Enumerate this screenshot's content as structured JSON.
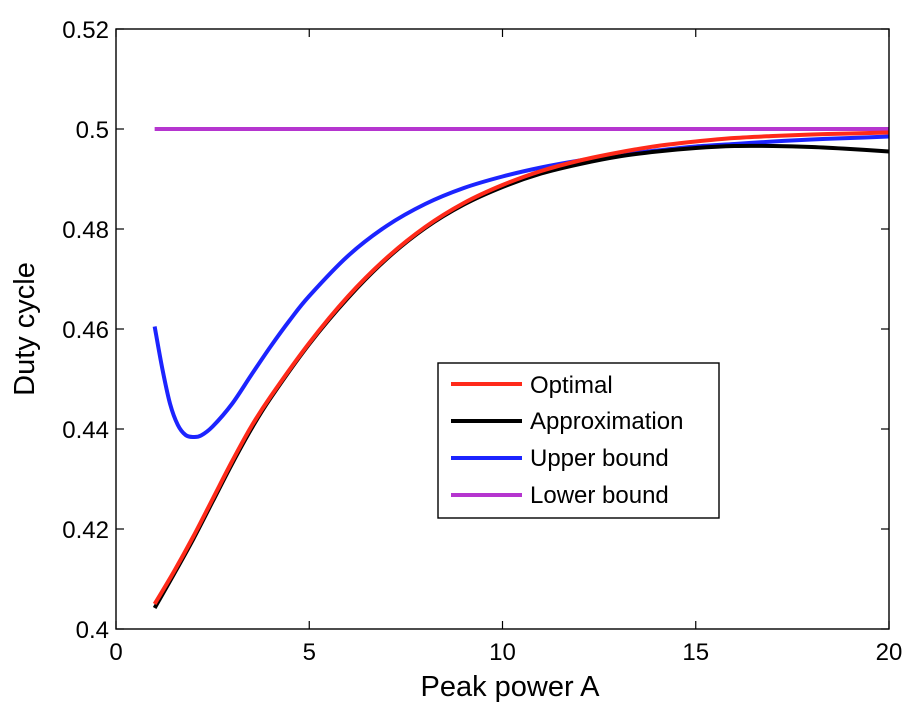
{
  "chart_data": {
    "type": "line",
    "xlabel": "Peak power A",
    "ylabel": "Duty cycle",
    "xlim": [
      0,
      20
    ],
    "ylim": [
      0.4,
      0.52
    ],
    "xticks": [
      0,
      5,
      10,
      15,
      20
    ],
    "yticks": [
      0.4,
      0.42,
      0.44,
      0.46,
      0.48,
      0.5,
      0.52
    ],
    "xtick_labels": [
      "0",
      "5",
      "10",
      "15",
      "20"
    ],
    "ytick_labels": [
      "0.4",
      "0.42",
      "0.44",
      "0.46",
      "0.48",
      "0.5",
      "0.52"
    ],
    "grid": false,
    "legend_position": "center-right",
    "series": [
      {
        "name": "Optimal",
        "color": "#ff2a1a",
        "x": [
          1,
          1.5,
          2,
          2.5,
          3,
          3.5,
          4,
          5,
          6,
          7,
          8,
          9,
          10,
          11,
          12,
          13,
          14,
          15,
          16,
          17,
          18,
          19,
          20
        ],
        "y": [
          0.405,
          0.4115,
          0.4185,
          0.426,
          0.4335,
          0.4405,
          0.4465,
          0.4572,
          0.4665,
          0.4742,
          0.4804,
          0.4852,
          0.4888,
          0.4916,
          0.4937,
          0.4953,
          0.4966,
          0.4975,
          0.4982,
          0.4986,
          0.4989,
          0.4991,
          0.4993
        ]
      },
      {
        "name": "Approximation",
        "color": "#000000",
        "x": [
          1,
          1.5,
          2,
          2.5,
          3,
          3.5,
          4,
          5,
          6,
          7,
          8,
          9,
          10,
          11,
          12,
          13,
          14,
          15,
          16,
          17,
          18,
          19,
          20
        ],
        "y": [
          0.4042,
          0.411,
          0.418,
          0.4255,
          0.433,
          0.44,
          0.4462,
          0.457,
          0.4662,
          0.474,
          0.4802,
          0.4849,
          0.4884,
          0.4911,
          0.493,
          0.4945,
          0.4955,
          0.4962,
          0.4966,
          0.4966,
          0.4964,
          0.496,
          0.4955
        ]
      },
      {
        "name": "Upper bound",
        "color": "#1c24ff",
        "x": [
          1,
          1.2,
          1.4,
          1.6,
          1.8,
          2,
          2.2,
          2.5,
          3,
          3.5,
          4,
          4.5,
          5,
          6,
          7,
          8,
          9,
          10,
          11,
          12,
          13,
          14,
          15,
          16,
          17,
          18,
          19,
          20
        ],
        "y": [
          0.4605,
          0.452,
          0.445,
          0.4408,
          0.4388,
          0.4384,
          0.4387,
          0.4405,
          0.445,
          0.4508,
          0.4565,
          0.4618,
          0.4666,
          0.4746,
          0.4806,
          0.485,
          0.4882,
          0.4905,
          0.4923,
          0.4937,
          0.4948,
          0.4957,
          0.4965,
          0.497,
          0.4975,
          0.4979,
          0.4982,
          0.4985
        ]
      },
      {
        "name": "Lower bound",
        "color": "#b535cf",
        "x": [
          1,
          20
        ],
        "y": [
          0.5,
          0.5
        ]
      }
    ]
  }
}
